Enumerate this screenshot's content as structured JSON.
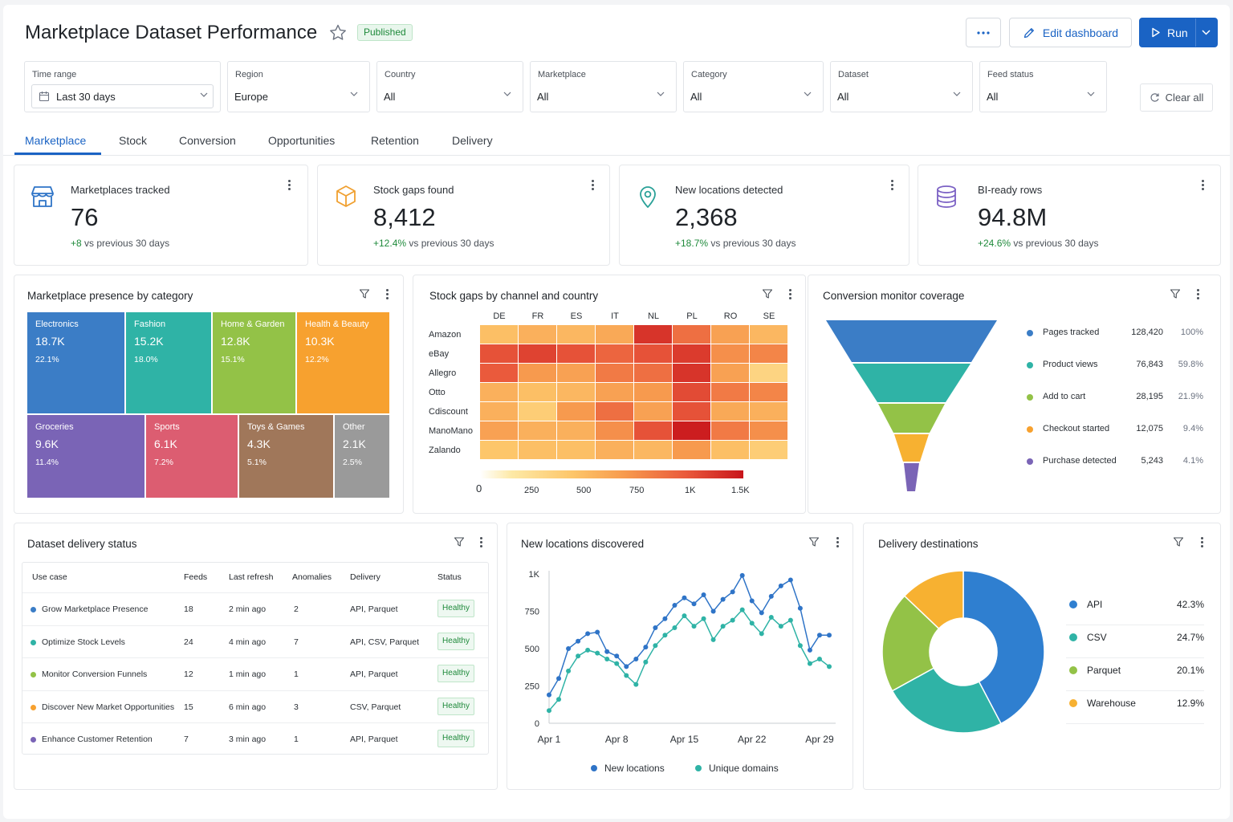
{
  "header": {
    "title": "Marketplace Dataset Performance",
    "status_badge": "Published",
    "edit_label": "Edit dashboard",
    "run_label": "Run"
  },
  "filters": [
    {
      "label": "Time range",
      "value": "Last 30 days"
    },
    {
      "label": "Region",
      "value": "Europe"
    },
    {
      "label": "Country",
      "value": "All"
    },
    {
      "label": "Marketplace",
      "value": "All"
    },
    {
      "label": "Category",
      "value": "All"
    },
    {
      "label": "Dataset",
      "value": "All"
    },
    {
      "label": "Feed status",
      "value": "All"
    }
  ],
  "clear_all_label": "Clear all",
  "tabs": [
    "Marketplace",
    "Stock",
    "Conversion",
    "Opportunities",
    "Retention",
    "Delivery"
  ],
  "active_tab": "Marketplace",
  "kpis": [
    {
      "label": "Marketplaces tracked",
      "value": "76",
      "delta": "+8",
      "compare": "vs previous 30 days",
      "icon": "storefront-icon",
      "color": "#2f74c7"
    },
    {
      "label": "Stock gaps found",
      "value": "8,412",
      "delta": "+12.4%",
      "compare": "vs previous 30 days",
      "icon": "box-icon",
      "color": "#f0a030"
    },
    {
      "label": "New locations detected",
      "value": "2,368",
      "delta": "+18.7%",
      "compare": "vs previous 30 days",
      "icon": "location-pin-icon",
      "color": "#2aa198"
    },
    {
      "label": "BI-ready rows",
      "value": "94.8M",
      "delta": "+24.6%",
      "compare": "vs previous 30 days",
      "icon": "database-icon",
      "color": "#7b61c4"
    }
  ],
  "treemap": {
    "title": "Marketplace presence by category",
    "cells": [
      {
        "name": "Electronics",
        "value": "18.7K",
        "pct": "22.1%",
        "color": "#3b7dc6"
      },
      {
        "name": "Fashion",
        "value": "15.2K",
        "pct": "18.0%",
        "color": "#2fb3a6"
      },
      {
        "name": "Home & Garden",
        "value": "12.8K",
        "pct": "15.1%",
        "color": "#93c247"
      },
      {
        "name": "Health & Beauty",
        "value": "10.3K",
        "pct": "12.2%",
        "color": "#f7a12f"
      },
      {
        "name": "Groceries",
        "value": "9.6K",
        "pct": "11.4%",
        "color": "#7a64b6"
      },
      {
        "name": "Sports",
        "value": "6.1K",
        "pct": "7.2%",
        "color": "#dc5d71"
      },
      {
        "name": "Toys & Games",
        "value": "4.3K",
        "pct": "5.1%",
        "color": "#a0775a"
      },
      {
        "name": "Other",
        "value": "2.1K",
        "pct": "2.5%",
        "color": "#9a9a9a"
      }
    ]
  },
  "heatmap": {
    "title": "Stock gaps  by channel and country",
    "columns": [
      "DE",
      "FR",
      "ES",
      "IT",
      "NL",
      "PL",
      "RO",
      "SE"
    ],
    "rows": [
      "Amazon",
      "eBay",
      "Allegro",
      "Otto",
      "Cdiscount",
      "ManoMano",
      "Zalando"
    ],
    "values": [
      [
        450,
        550,
        500,
        600,
        1250,
        900,
        650,
        500
      ],
      [
        1050,
        1150,
        1050,
        950,
        1050,
        1200,
        750,
        800
      ],
      [
        1000,
        700,
        650,
        850,
        900,
        1250,
        650,
        300
      ],
      [
        550,
        450,
        500,
        650,
        700,
        1100,
        850,
        800
      ],
      [
        550,
        350,
        700,
        900,
        650,
        1050,
        600,
        550
      ],
      [
        650,
        550,
        550,
        750,
        1050,
        1400,
        850,
        750
      ],
      [
        400,
        450,
        450,
        550,
        500,
        700,
        450,
        350
      ]
    ],
    "scale_ticks": [
      "0",
      "250",
      "500",
      "750",
      "1K",
      "1.5K"
    ]
  },
  "funnel": {
    "title": "Conversion monitor coverage",
    "stages": [
      {
        "label": "Pages tracked",
        "count": "128,420",
        "pct": "100%",
        "color": "#3b7dc6"
      },
      {
        "label": "Product views",
        "count": "76,843",
        "pct": "59.8%",
        "color": "#2fb3a6"
      },
      {
        "label": "Add to cart",
        "count": "28,195",
        "pct": "21.9%",
        "color": "#93c247"
      },
      {
        "label": "Checkout started",
        "count": "12,075",
        "pct": "9.4%",
        "color": "#f7a12f"
      },
      {
        "label": "Purchase detected",
        "count": "5,243",
        "pct": "4.1%",
        "color": "#7a64b6"
      }
    ]
  },
  "delivery_table": {
    "title": "Dataset delivery status",
    "headers": [
      "Use case",
      "Feeds",
      "Last refresh",
      "Anomalies",
      "Delivery",
      "Status"
    ],
    "rows": [
      {
        "use_case": "Grow Marketplace Presence",
        "feeds": "18",
        "refresh": "2 min ago",
        "anomalies": "2",
        "delivery": "API, Parquet",
        "status": "Healthy",
        "color": "#3b7dc6"
      },
      {
        "use_case": "Optimize Stock Levels",
        "feeds": "24",
        "refresh": "4 min ago",
        "anomalies": "7",
        "delivery": "API, CSV, Parquet",
        "status": "Healthy",
        "color": "#2fb3a6"
      },
      {
        "use_case": "Monitor Conversion Funnels",
        "feeds": "12",
        "refresh": "1 min ago",
        "anomalies": "1",
        "delivery": "API, Parquet",
        "status": "Healthy",
        "color": "#93c247"
      },
      {
        "use_case": "Discover New Market Opportunities",
        "feeds": "15",
        "refresh": "6 min ago",
        "anomalies": "3",
        "delivery": "CSV, Parquet",
        "status": "Healthy",
        "color": "#f7a12f"
      },
      {
        "use_case": "Enhance Customer Retention",
        "feeds": "7",
        "refresh": "3 min ago",
        "anomalies": "1",
        "delivery": "API, Parquet",
        "status": "Healthy",
        "color": "#7a64b6"
      }
    ]
  },
  "line_card_title": "New locations discovered",
  "donut_card_title": "Delivery destinations",
  "chart_data": [
    {
      "type": "line",
      "title": "New locations discovered",
      "x_ticks": [
        "Apr 1",
        "Apr 8",
        "Apr 15",
        "Apr 22",
        "Apr 29"
      ],
      "y_ticks": [
        "0",
        "250",
        "500",
        "750",
        "1K"
      ],
      "ylim": [
        0,
        1000
      ],
      "x": [
        "Apr 1",
        "Apr 2",
        "Apr 3",
        "Apr 4",
        "Apr 5",
        "Apr 6",
        "Apr 7",
        "Apr 8",
        "Apr 9",
        "Apr 10",
        "Apr 11",
        "Apr 12",
        "Apr 13",
        "Apr 14",
        "Apr 15",
        "Apr 16",
        "Apr 17",
        "Apr 18",
        "Apr 19",
        "Apr 20",
        "Apr 21",
        "Apr 22",
        "Apr 23",
        "Apr 24",
        "Apr 25",
        "Apr 26",
        "Apr 27",
        "Apr 28",
        "Apr 29",
        "Apr 30"
      ],
      "series": [
        {
          "name": "New locations",
          "color": "#2f74c7",
          "values": [
            190,
            300,
            500,
            550,
            600,
            610,
            480,
            450,
            380,
            430,
            510,
            640,
            700,
            790,
            840,
            800,
            860,
            750,
            830,
            880,
            990,
            820,
            740,
            850,
            920,
            960,
            770,
            490,
            590,
            590
          ]
        },
        {
          "name": "Unique domains",
          "color": "#2fb3a6",
          "values": [
            85,
            160,
            350,
            450,
            490,
            470,
            430,
            400,
            320,
            260,
            410,
            520,
            590,
            640,
            720,
            650,
            700,
            560,
            650,
            690,
            760,
            670,
            600,
            710,
            650,
            690,
            520,
            400,
            430,
            380
          ]
        }
      ],
      "legend": "bottom"
    },
    {
      "type": "pie",
      "title": "Delivery destinations",
      "categories": [
        "API",
        "CSV",
        "Parquet",
        "Warehouse"
      ],
      "values": [
        42.3,
        24.7,
        20.1,
        12.9
      ],
      "labels": [
        "42.3%",
        "24.7%",
        "20.1%",
        "12.9%"
      ],
      "colors": [
        "#2f7fd0",
        "#2fb3a6",
        "#93c247",
        "#f7b131"
      ],
      "legend": "right"
    }
  ]
}
